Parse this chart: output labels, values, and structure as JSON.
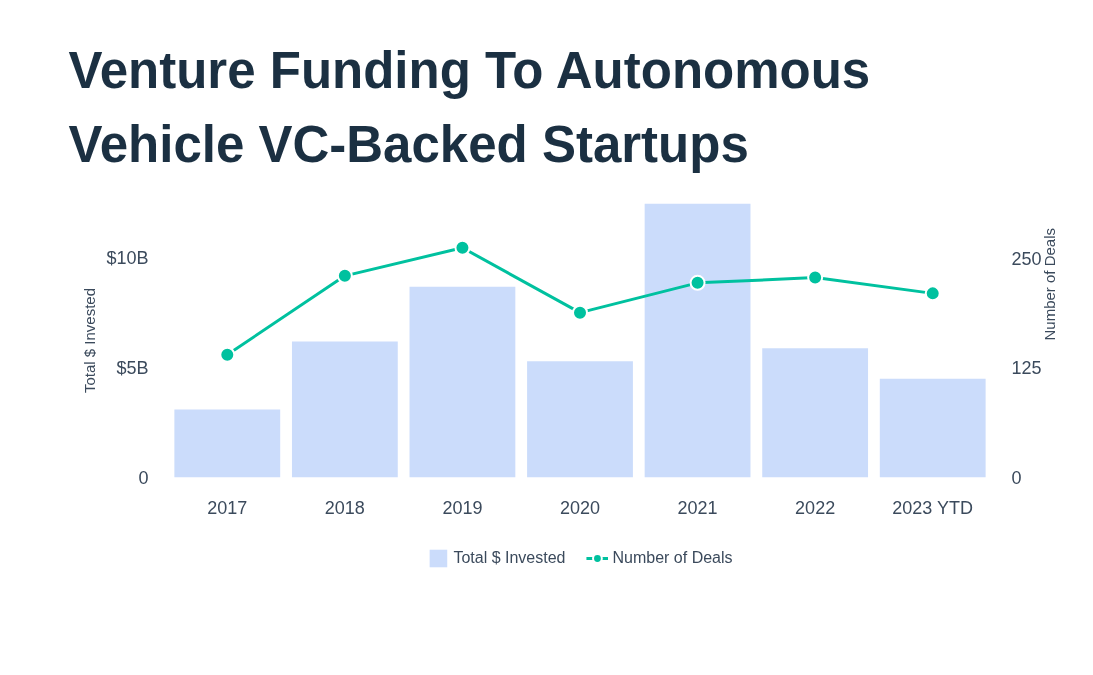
{
  "chart_data": {
    "type": "bar",
    "title": "Venture Funding To Autonomous Vehicle VC-Backed Startups",
    "ylabel": "Total $ Invested",
    "y2label": "Number of Deals",
    "categories": [
      "2017",
      "2018",
      "2019",
      "2020",
      "2021",
      "2022",
      "2023 YTD"
    ],
    "series": [
      {
        "name": "Total $ Invested",
        "color": "#cbdcfb",
        "values": [
          3.1,
          6.2,
          8.7,
          5.3,
          12.5,
          5.9,
          4.5
        ]
      },
      {
        "name": "Number of Deals",
        "type": "line",
        "axis": "y2",
        "color": "#00c19f",
        "values": [
          140,
          230,
          262,
          188,
          222,
          228,
          210
        ]
      }
    ],
    "ylim": [
      0,
      12.5
    ],
    "yticks": [
      0,
      {
        "value": 5,
        "label": "$5B"
      },
      {
        "value": 10,
        "label": "$10B"
      }
    ],
    "y2lim": [
      0,
      312.5
    ],
    "y2ticks": [
      0,
      125,
      250
    ],
    "legend": "bottom",
    "marker": "circle",
    "line_style": "solid"
  }
}
